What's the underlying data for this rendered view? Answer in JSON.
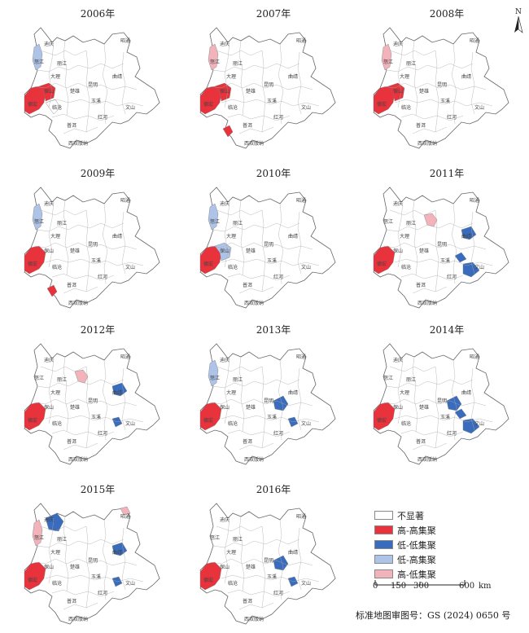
{
  "panels": [
    {
      "year": "2006年",
      "regions": [
        {
          "id": "nujiang",
          "cls": "lh"
        },
        {
          "id": "dehong",
          "cls": "hh"
        },
        {
          "id": "baoshan",
          "cls": "hh"
        },
        {
          "id": "lincang",
          "cls": "none"
        }
      ]
    },
    {
      "year": "2007年",
      "regions": [
        {
          "id": "nujiang",
          "cls": "hl"
        },
        {
          "id": "dehong",
          "cls": "hh"
        },
        {
          "id": "baoshan",
          "cls": "hh"
        },
        {
          "id": "south",
          "cls": "hh"
        }
      ]
    },
    {
      "year": "2008年",
      "regions": [
        {
          "id": "nujiang",
          "cls": "hl"
        },
        {
          "id": "dehong",
          "cls": "hh"
        },
        {
          "id": "baoshan",
          "cls": "hh"
        }
      ]
    },
    {
      "year": "2009年",
      "regions": [
        {
          "id": "nujiang",
          "cls": "lh"
        },
        {
          "id": "dehong",
          "cls": "hh"
        },
        {
          "id": "south",
          "cls": "hh"
        }
      ]
    },
    {
      "year": "2010年",
      "regions": [
        {
          "id": "nujiang",
          "cls": "lh"
        },
        {
          "id": "dehong",
          "cls": "hh"
        },
        {
          "id": "baoshan",
          "cls": "lh"
        }
      ]
    },
    {
      "year": "2011年",
      "regions": [
        {
          "id": "dehong",
          "cls": "hh"
        },
        {
          "id": "chuxiong",
          "cls": "hl"
        },
        {
          "id": "east1",
          "cls": "ll"
        },
        {
          "id": "east2",
          "cls": "ll"
        },
        {
          "id": "east3",
          "cls": "ll"
        }
      ]
    },
    {
      "year": "2012年",
      "regions": [
        {
          "id": "dehong",
          "cls": "hh"
        },
        {
          "id": "chuxiong",
          "cls": "hl"
        },
        {
          "id": "east1",
          "cls": "ll"
        },
        {
          "id": "east4",
          "cls": "ll"
        }
      ]
    },
    {
      "year": "2013年",
      "regions": [
        {
          "id": "dehong",
          "cls": "hh"
        },
        {
          "id": "nujiang",
          "cls": "lh"
        },
        {
          "id": "kunming",
          "cls": "ll"
        },
        {
          "id": "east4",
          "cls": "ll"
        }
      ]
    },
    {
      "year": "2014年",
      "regions": [
        {
          "id": "dehong",
          "cls": "hh"
        },
        {
          "id": "kunming",
          "cls": "ll"
        },
        {
          "id": "east2",
          "cls": "ll"
        },
        {
          "id": "east3",
          "cls": "ll"
        }
      ]
    },
    {
      "year": "2015年",
      "regions": [
        {
          "id": "dehong",
          "cls": "hh"
        },
        {
          "id": "nujiang",
          "cls": "hl"
        },
        {
          "id": "diqing",
          "cls": "ll"
        },
        {
          "id": "zhaotong",
          "cls": "hl"
        },
        {
          "id": "east1",
          "cls": "ll"
        },
        {
          "id": "east4",
          "cls": "ll"
        }
      ]
    },
    {
      "year": "2016年",
      "regions": [
        {
          "id": "dehong",
          "cls": "hh"
        },
        {
          "id": "kunming",
          "cls": "ll"
        },
        {
          "id": "east4",
          "cls": "ll"
        }
      ]
    }
  ],
  "place_names": [
    "迪庆",
    "丽江",
    "怒江",
    "大理",
    "保山",
    "德宏",
    "临沧",
    "楚雄",
    "昆明",
    "曲靖",
    "玉溪",
    "红河",
    "文山",
    "普洱",
    "西双版纳",
    "昭通"
  ],
  "legend": [
    {
      "label": "不显著",
      "color": "#ffffff"
    },
    {
      "label": "高-高集聚",
      "color": "#e8323c"
    },
    {
      "label": "低-低集聚",
      "color": "#3a6cbd"
    },
    {
      "label": "低-高集聚",
      "color": "#aec3e8"
    },
    {
      "label": "高-低集聚",
      "color": "#f3b3bb"
    }
  ],
  "colors": {
    "hh": "#e8323c",
    "ll": "#3a6cbd",
    "lh": "#aec3e8",
    "hl": "#f3b3bb",
    "none": "#ffffff"
  },
  "scale": {
    "ticks": [
      "0",
      "150",
      "300",
      "600"
    ],
    "unit": "km"
  },
  "north_label": "N",
  "approval": "标准地图审图号：GS (2024) 0650 号"
}
